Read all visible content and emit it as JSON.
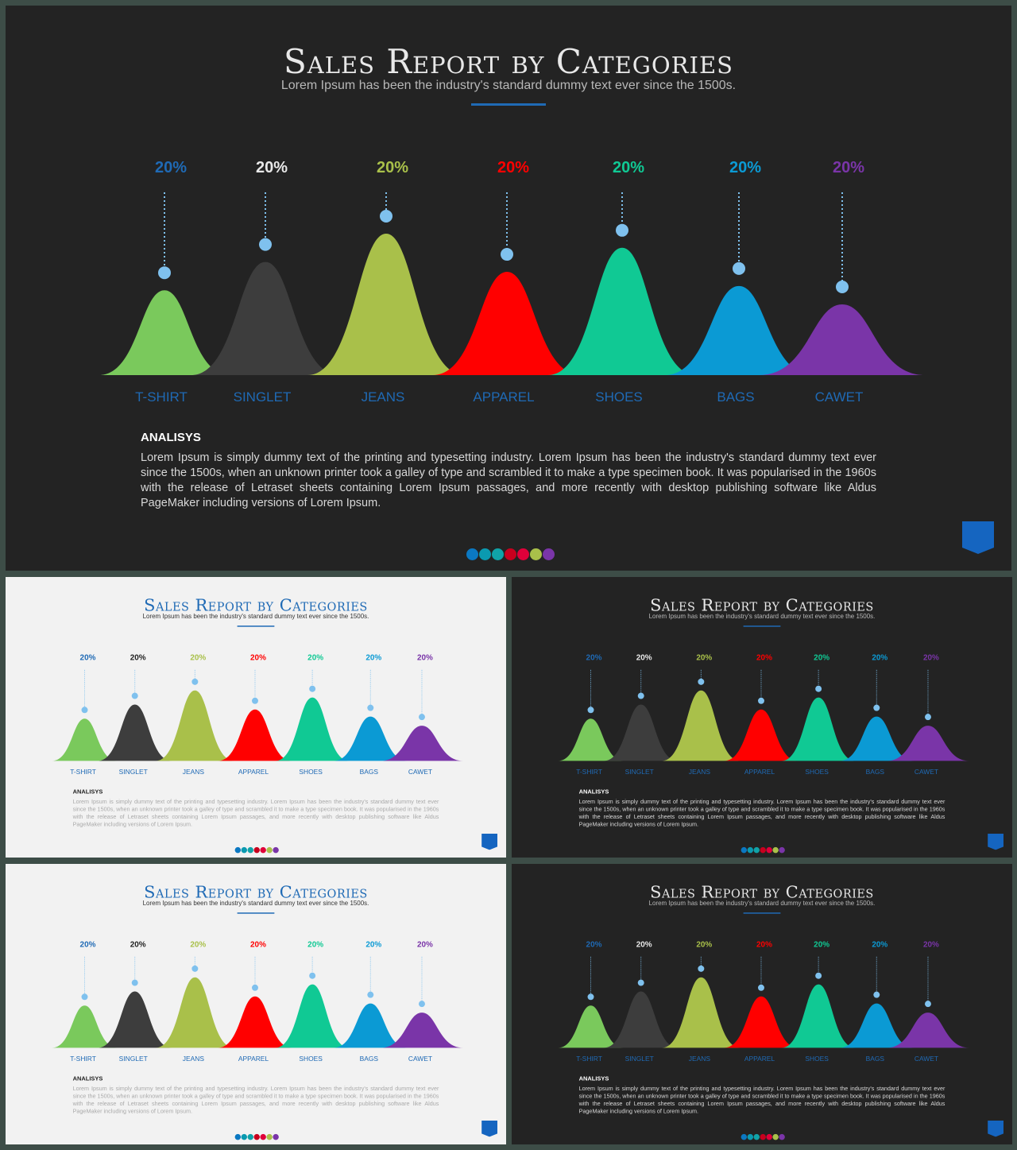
{
  "slide": {
    "title": "Sales Report by Categories",
    "subtitle": "Lorem Ipsum has been the industry's standard dummy text ever since the 1500s.",
    "analysis_heading": "ANALISYS",
    "analysis_text": "Lorem Ipsum is simply dummy text of the printing and typesetting industry. Lorem Ipsum has been the industry's standard dummy text ever since the 1500s, when an unknown printer took a galley of type and scrambled it to make a type specimen book. It was popularised in the 1960s with the release of Letraset sheets containing Lorem Ipsum passages, and more recently with desktop publishing software like Aldus PageMaker including versions of Lorem Ipsum."
  },
  "chart_data": {
    "type": "area",
    "categories": [
      "T-SHIRT",
      "SINGLET",
      "JEANS",
      "APPAREL",
      "SHOES",
      "BAGS",
      "CAWET"
    ],
    "values": [
      "20%",
      "20%",
      "20%",
      "20%",
      "20%",
      "20%",
      "20%"
    ],
    "peak_heights": [
      0.6,
      0.8,
      1.0,
      0.73,
      0.9,
      0.63,
      0.5
    ],
    "colors": [
      "#7ac95c",
      "#3d3d3d",
      "#a9c04a",
      "#ff0000",
      "#10c994",
      "#0b9ad4",
      "#7a35a8"
    ],
    "label_colors": [
      "#1f6ab5",
      "#e8e8e8",
      "#a9c04a",
      "#ff0000",
      "#10c994",
      "#0b9ad4",
      "#7a35a8"
    ],
    "label_colors_light": [
      "#1f6ab5",
      "#222222",
      "#a9c04a",
      "#ff0000",
      "#10c994",
      "#0b9ad4",
      "#7a35a8"
    ],
    "category_label_color": "#1f6ab5",
    "marker_color": "#7fc1ee"
  },
  "dots": [
    "#0b78c2",
    "#0b9ab0",
    "#10a3a8",
    "#c8001e",
    "#e0003a",
    "#a9c04a",
    "#7a35a8"
  ],
  "badge_color": "#1565c0",
  "slides": [
    {
      "id": "slide-main",
      "theme": "dark"
    },
    {
      "id": "slide-s1",
      "theme": "light"
    },
    {
      "id": "slide-s2",
      "theme": "dark"
    },
    {
      "id": "slide-s3",
      "theme": "light"
    },
    {
      "id": "slide-s4",
      "theme": "dark"
    }
  ]
}
